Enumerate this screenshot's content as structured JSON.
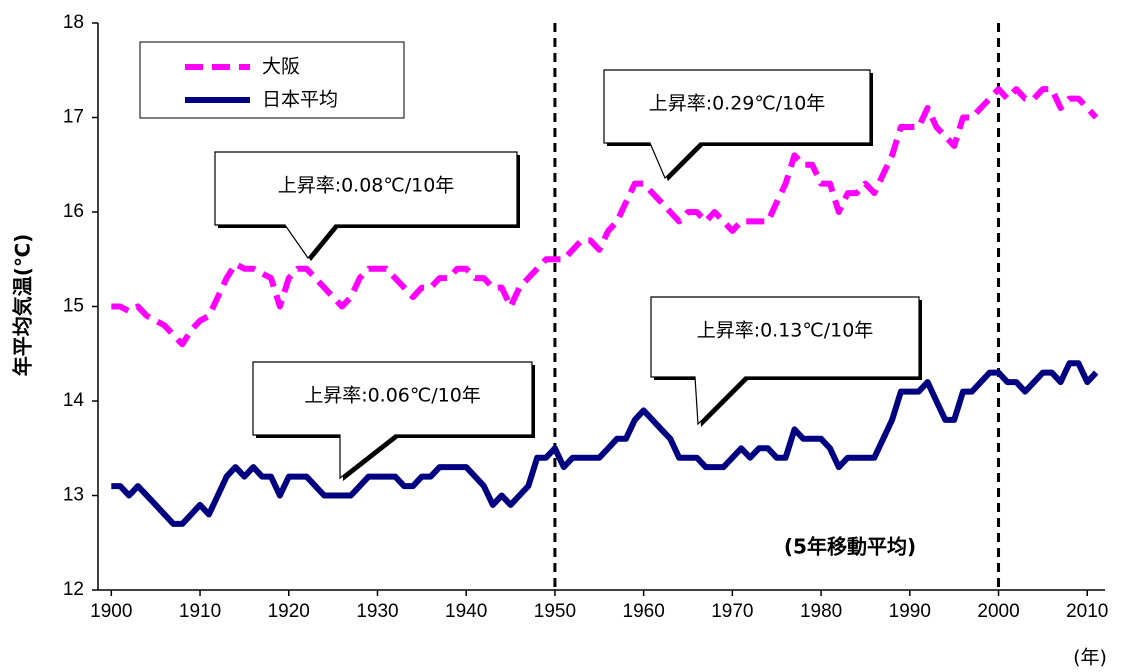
{
  "chart_data": {
    "type": "line",
    "y_label": "年平均気温(℃)",
    "x_label": "(年)",
    "x": [
      1900,
      1901,
      1902,
      1903,
      1904,
      1905,
      1906,
      1907,
      1908,
      1909,
      1910,
      1911,
      1912,
      1913,
      1914,
      1915,
      1916,
      1917,
      1918,
      1919,
      1920,
      1921,
      1922,
      1923,
      1924,
      1925,
      1926,
      1927,
      1928,
      1929,
      1930,
      1931,
      1932,
      1933,
      1934,
      1935,
      1936,
      1937,
      1938,
      1939,
      1940,
      1941,
      1942,
      1943,
      1944,
      1945,
      1946,
      1947,
      1948,
      1949,
      1950,
      1951,
      1952,
      1953,
      1954,
      1955,
      1956,
      1957,
      1958,
      1959,
      1960,
      1961,
      1962,
      1963,
      1964,
      1965,
      1966,
      1967,
      1968,
      1969,
      1970,
      1971,
      1972,
      1973,
      1974,
      1975,
      1976,
      1977,
      1978,
      1979,
      1980,
      1981,
      1982,
      1983,
      1984,
      1985,
      1986,
      1987,
      1988,
      1989,
      1990,
      1991,
      1992,
      1993,
      1994,
      1995,
      1996,
      1997,
      1998,
      1999,
      2000,
      2001,
      2002,
      2003,
      2004,
      2005,
      2006,
      2007,
      2008,
      2009,
      2010,
      2011
    ],
    "series": [
      {
        "name": "大阪",
        "color": "#ff00ff",
        "style": "dashed",
        "values": [
          15.0,
          15.0,
          14.95,
          15.0,
          14.9,
          14.85,
          14.8,
          14.7,
          14.6,
          14.75,
          14.85,
          14.9,
          15.1,
          15.3,
          15.45,
          15.4,
          15.4,
          15.35,
          15.3,
          15.0,
          15.3,
          15.4,
          15.4,
          15.3,
          15.2,
          15.1,
          15.0,
          15.1,
          15.3,
          15.4,
          15.4,
          15.4,
          15.3,
          15.2,
          15.1,
          15.2,
          15.2,
          15.3,
          15.3,
          15.4,
          15.4,
          15.3,
          15.3,
          15.2,
          15.2,
          15.0,
          15.2,
          15.3,
          15.4,
          15.5,
          15.5,
          15.5,
          15.6,
          15.7,
          15.7,
          15.6,
          15.8,
          15.9,
          16.1,
          16.3,
          16.3,
          16.2,
          16.1,
          16.0,
          15.9,
          16.0,
          16.0,
          15.9,
          16.0,
          15.9,
          15.8,
          15.9,
          15.9,
          15.9,
          15.9,
          16.1,
          16.3,
          16.6,
          16.5,
          16.5,
          16.3,
          16.3,
          16.0,
          16.2,
          16.2,
          16.3,
          16.2,
          16.4,
          16.6,
          16.9,
          16.9,
          16.9,
          17.1,
          16.9,
          16.8,
          16.7,
          17.0,
          17.0,
          17.1,
          17.2,
          17.3,
          17.2,
          17.3,
          17.2,
          17.2,
          17.3,
          17.3,
          17.1,
          17.2,
          17.2,
          17.1,
          17.0
        ]
      },
      {
        "name": "日本平均",
        "color": "#000080",
        "style": "solid",
        "values": [
          13.1,
          13.1,
          13.0,
          13.1,
          13.0,
          12.9,
          12.8,
          12.7,
          12.7,
          12.8,
          12.9,
          12.8,
          13.0,
          13.2,
          13.3,
          13.2,
          13.3,
          13.2,
          13.2,
          13.0,
          13.2,
          13.2,
          13.2,
          13.1,
          13.0,
          13.0,
          13.0,
          13.0,
          13.1,
          13.2,
          13.2,
          13.2,
          13.2,
          13.1,
          13.1,
          13.2,
          13.2,
          13.3,
          13.3,
          13.3,
          13.3,
          13.2,
          13.1,
          12.9,
          13.0,
          12.9,
          13.0,
          13.1,
          13.4,
          13.4,
          13.5,
          13.3,
          13.4,
          13.4,
          13.4,
          13.4,
          13.5,
          13.6,
          13.6,
          13.8,
          13.9,
          13.8,
          13.7,
          13.6,
          13.4,
          13.4,
          13.4,
          13.3,
          13.3,
          13.3,
          13.4,
          13.5,
          13.4,
          13.5,
          13.5,
          13.4,
          13.4,
          13.7,
          13.6,
          13.6,
          13.6,
          13.5,
          13.3,
          13.4,
          13.4,
          13.4,
          13.4,
          13.6,
          13.8,
          14.1,
          14.1,
          14.1,
          14.2,
          14.0,
          13.8,
          13.8,
          14.1,
          14.1,
          14.2,
          14.3,
          14.3,
          14.2,
          14.2,
          14.1,
          14.2,
          14.3,
          14.3,
          14.2,
          14.4,
          14.4,
          14.2,
          14.3
        ]
      }
    ],
    "xlim": [
      1898.5,
      2012
    ],
    "xticks": [
      1900,
      1910,
      1920,
      1930,
      1940,
      1950,
      1960,
      1970,
      1980,
      1990,
      2000,
      2010
    ],
    "ylim": [
      12,
      18
    ],
    "yticks": [
      12,
      13,
      14,
      15,
      16,
      17,
      18
    ],
    "vlines": [
      1950,
      2000
    ],
    "annotations": [
      "上昇率:0.08℃/10年",
      "上昇率:0.29℃/10年",
      "上昇率:0.06℃/10年",
      "上昇率:0.13℃/10年"
    ],
    "note": "(5年移動平均)"
  }
}
